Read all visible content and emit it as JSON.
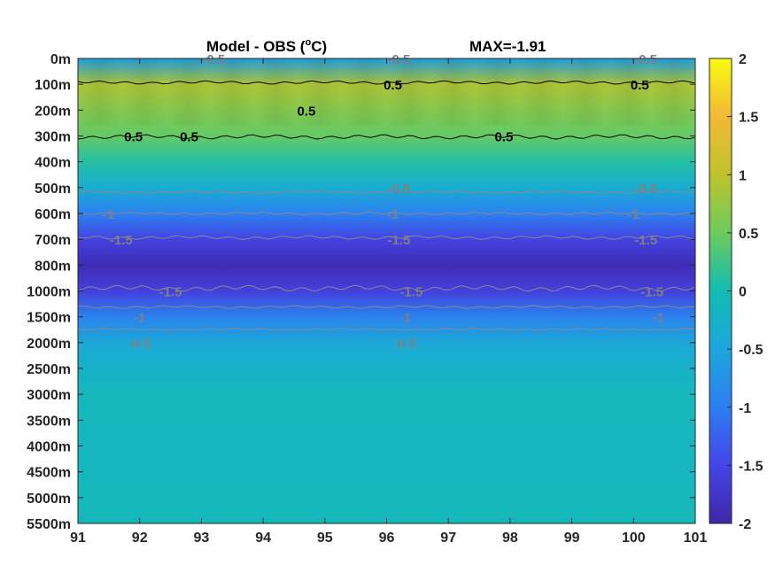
{
  "chart_data": {
    "type": "heatmap",
    "title": "Model - OBS (",
    "title_unit": "C)",
    "title_degree": "o",
    "max_label": "MAX=-1.91",
    "x_ticks": [
      "91",
      "92",
      "93",
      "94",
      "95",
      "96",
      "97",
      "98",
      "99",
      "100",
      "101"
    ],
    "y_ticks": [
      "0m",
      "100m",
      "200m",
      "300m",
      "400m",
      "500m",
      "600m",
      "700m",
      "800m",
      "1000m",
      "1500m",
      "2000m",
      "2500m",
      "3000m",
      "3500m",
      "4000m",
      "4500m",
      "5000m",
      "5500m"
    ],
    "colorbar_ticks": [
      "2",
      "1.5",
      "1",
      "0.5",
      "0",
      "-0.5",
      "-1",
      "-1.5",
      "-2"
    ],
    "clim": [
      -2,
      2
    ],
    "colormap": "parula",
    "contour_levels": [
      0.5,
      -0.5,
      -1,
      -1.5
    ],
    "depth_profile": [
      -0.6,
      0.9,
      0.65,
      0.45,
      0.1,
      -0.35,
      -0.95,
      -1.55,
      -1.9,
      -1.6,
      -0.95,
      -0.45,
      -0.25,
      -0.1,
      -0.1,
      -0.12,
      -0.12,
      -0.08,
      -0.08
    ],
    "contour_labels": [
      {
        "text": "-0.5",
        "x": 93.2,
        "depth": "0m",
        "color": "gray"
      },
      {
        "text": "-0.5",
        "x": 96.2,
        "depth": "0m",
        "color": "gray"
      },
      {
        "text": "-0.5",
        "x": 100.2,
        "depth": "0m",
        "color": "gray"
      },
      {
        "text": "0.5",
        "x": 96.1,
        "depth": "100m",
        "color": "black"
      },
      {
        "text": "0.5",
        "x": 100.1,
        "depth": "100m",
        "color": "black"
      },
      {
        "text": "0.5",
        "x": 91.9,
        "depth": "300m",
        "color": "black"
      },
      {
        "text": "0.5",
        "x": 92.8,
        "depth": "300m",
        "color": "black"
      },
      {
        "text": "0.5",
        "x": 94.7,
        "depth": "200m",
        "color": "black"
      },
      {
        "text": "0.5",
        "x": 97.9,
        "depth": "300m",
        "color": "black"
      },
      {
        "text": "-0.5",
        "x": 96.2,
        "depth": "500m",
        "color": "gray"
      },
      {
        "text": "-0.5",
        "x": 100.2,
        "depth": "500m",
        "color": "gray"
      },
      {
        "text": "-1",
        "x": 91.5,
        "depth": "600m",
        "color": "gray"
      },
      {
        "text": "-1",
        "x": 96.1,
        "depth": "600m",
        "color": "gray"
      },
      {
        "text": "-1",
        "x": 100.0,
        "depth": "600m",
        "color": "gray"
      },
      {
        "text": "-1.5",
        "x": 91.7,
        "depth": "700m",
        "color": "gray"
      },
      {
        "text": "-1.5",
        "x": 96.2,
        "depth": "700m",
        "color": "gray"
      },
      {
        "text": "-1.5",
        "x": 100.2,
        "depth": "700m",
        "color": "gray"
      },
      {
        "text": "-1.5",
        "x": 92.5,
        "depth": "1000m",
        "color": "gray"
      },
      {
        "text": "-1.5",
        "x": 96.4,
        "depth": "1000m",
        "color": "gray"
      },
      {
        "text": "-1.5",
        "x": 100.3,
        "depth": "1000m",
        "color": "gray"
      },
      {
        "text": "-1",
        "x": 92.0,
        "depth": "1500m",
        "color": "gray"
      },
      {
        "text": "-1",
        "x": 96.3,
        "depth": "1500m",
        "color": "gray"
      },
      {
        "text": "-1",
        "x": 100.4,
        "depth": "1500m",
        "color": "gray"
      },
      {
        "text": "-0.5",
        "x": 92.0,
        "depth": "2000m",
        "color": "gray"
      },
      {
        "text": "-0.5",
        "x": 96.3,
        "depth": "2000m",
        "color": "gray"
      }
    ]
  }
}
